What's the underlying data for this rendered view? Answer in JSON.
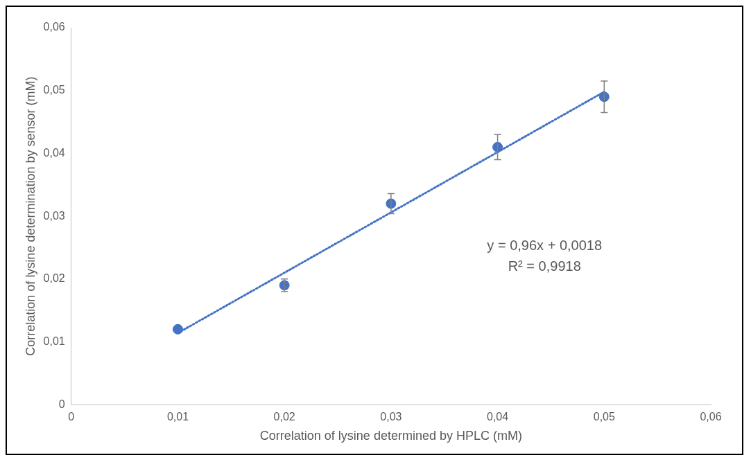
{
  "chart_data": {
    "type": "scatter",
    "xlabel": "Correlation of lysine determined by HPLC (mM)",
    "ylabel": "Correlation of lysine determination by sensor (mM)",
    "xlim": [
      0,
      0.06
    ],
    "xticks": [
      0,
      {
        "value": 0.01,
        "label": "0,01"
      },
      {
        "value": 0.02,
        "label": "0,02"
      },
      {
        "value": 0.03,
        "label": "0,03"
      },
      {
        "value": 0.04,
        "label": "0,04"
      },
      {
        "value": 0.05,
        "label": "0,05"
      },
      {
        "value": 0.06,
        "label": "0,06"
      }
    ],
    "ylim": [
      0,
      0.06
    ],
    "yticks": [
      0,
      {
        "value": 0.01,
        "label": "0,01"
      },
      {
        "value": 0.02,
        "label": "0,02"
      },
      {
        "value": 0.03,
        "label": "0,03"
      },
      {
        "value": 0.04,
        "label": "0,04"
      },
      {
        "value": 0.05,
        "label": "0,05"
      },
      {
        "value": 0.06,
        "label": "0,06"
      }
    ],
    "grid": false,
    "legend": false,
    "marker": "circle",
    "series": [
      {
        "type": "scatter",
        "color": "#4472c4",
        "x": [
          0.01,
          0.02,
          0.03,
          0.04,
          0.05
        ],
        "values": [
          0.012,
          0.019,
          0.032,
          0.041,
          0.049
        ],
        "errors": [
          null,
          0.001,
          0.0016,
          0.002,
          0.0025
        ]
      },
      {
        "type": "line",
        "color": "#4472c4",
        "x": [
          0.01,
          0.05
        ],
        "values": [
          0.0114,
          0.0498
        ],
        "line_style": "dotted",
        "marker": "none"
      }
    ],
    "annotations": [
      "y = 0,96x + 0,0018",
      "R² = 0,9918"
    ]
  }
}
